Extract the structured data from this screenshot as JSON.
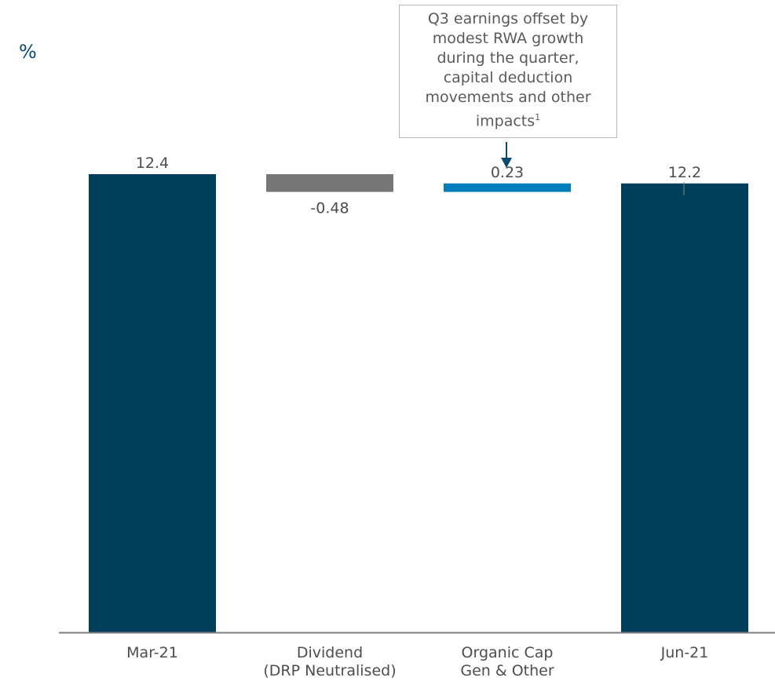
{
  "unit": "%",
  "annotation": {
    "lines": [
      "Q3 earnings offset by",
      "modest RWA growth",
      "during the quarter,",
      "capital deduction",
      "movements and other"
    ],
    "last_line": "impacts",
    "footnote": "1",
    "points_to": "Organic Cap Gen & Other"
  },
  "chart_data": {
    "type": "waterfall",
    "title": "",
    "xlabel": "",
    "ylabel": "%",
    "categories": [
      {
        "lines": [
          "Mar-21"
        ]
      },
      {
        "lines": [
          "Dividend",
          "(DRP Neutralised)"
        ]
      },
      {
        "lines": [
          "Organic Cap",
          "Gen & Other"
        ]
      },
      {
        "lines": [
          "Jun-21"
        ]
      }
    ],
    "bars": [
      {
        "category": "Mar-21",
        "kind": "total",
        "start": 0,
        "end": 12.4,
        "label": "12.4",
        "color": "#003f5c"
      },
      {
        "category": "Dividend (DRP Neutralised)",
        "kind": "delta",
        "start": 12.4,
        "end": 11.92,
        "label": "-0.48",
        "color": "#767676"
      },
      {
        "category": "Organic Cap Gen & Other",
        "kind": "delta",
        "start": 11.92,
        "end": 12.15,
        "label": "0.23",
        "color": "#007dba"
      },
      {
        "category": "Jun-21",
        "kind": "total",
        "start": 0,
        "end": 12.15,
        "label": "12.2",
        "color": "#003f5c"
      }
    ],
    "axis_color": "#7f7f7f",
    "label_color": "#4d4d4d",
    "arrow_color": "#0b4a6f"
  }
}
